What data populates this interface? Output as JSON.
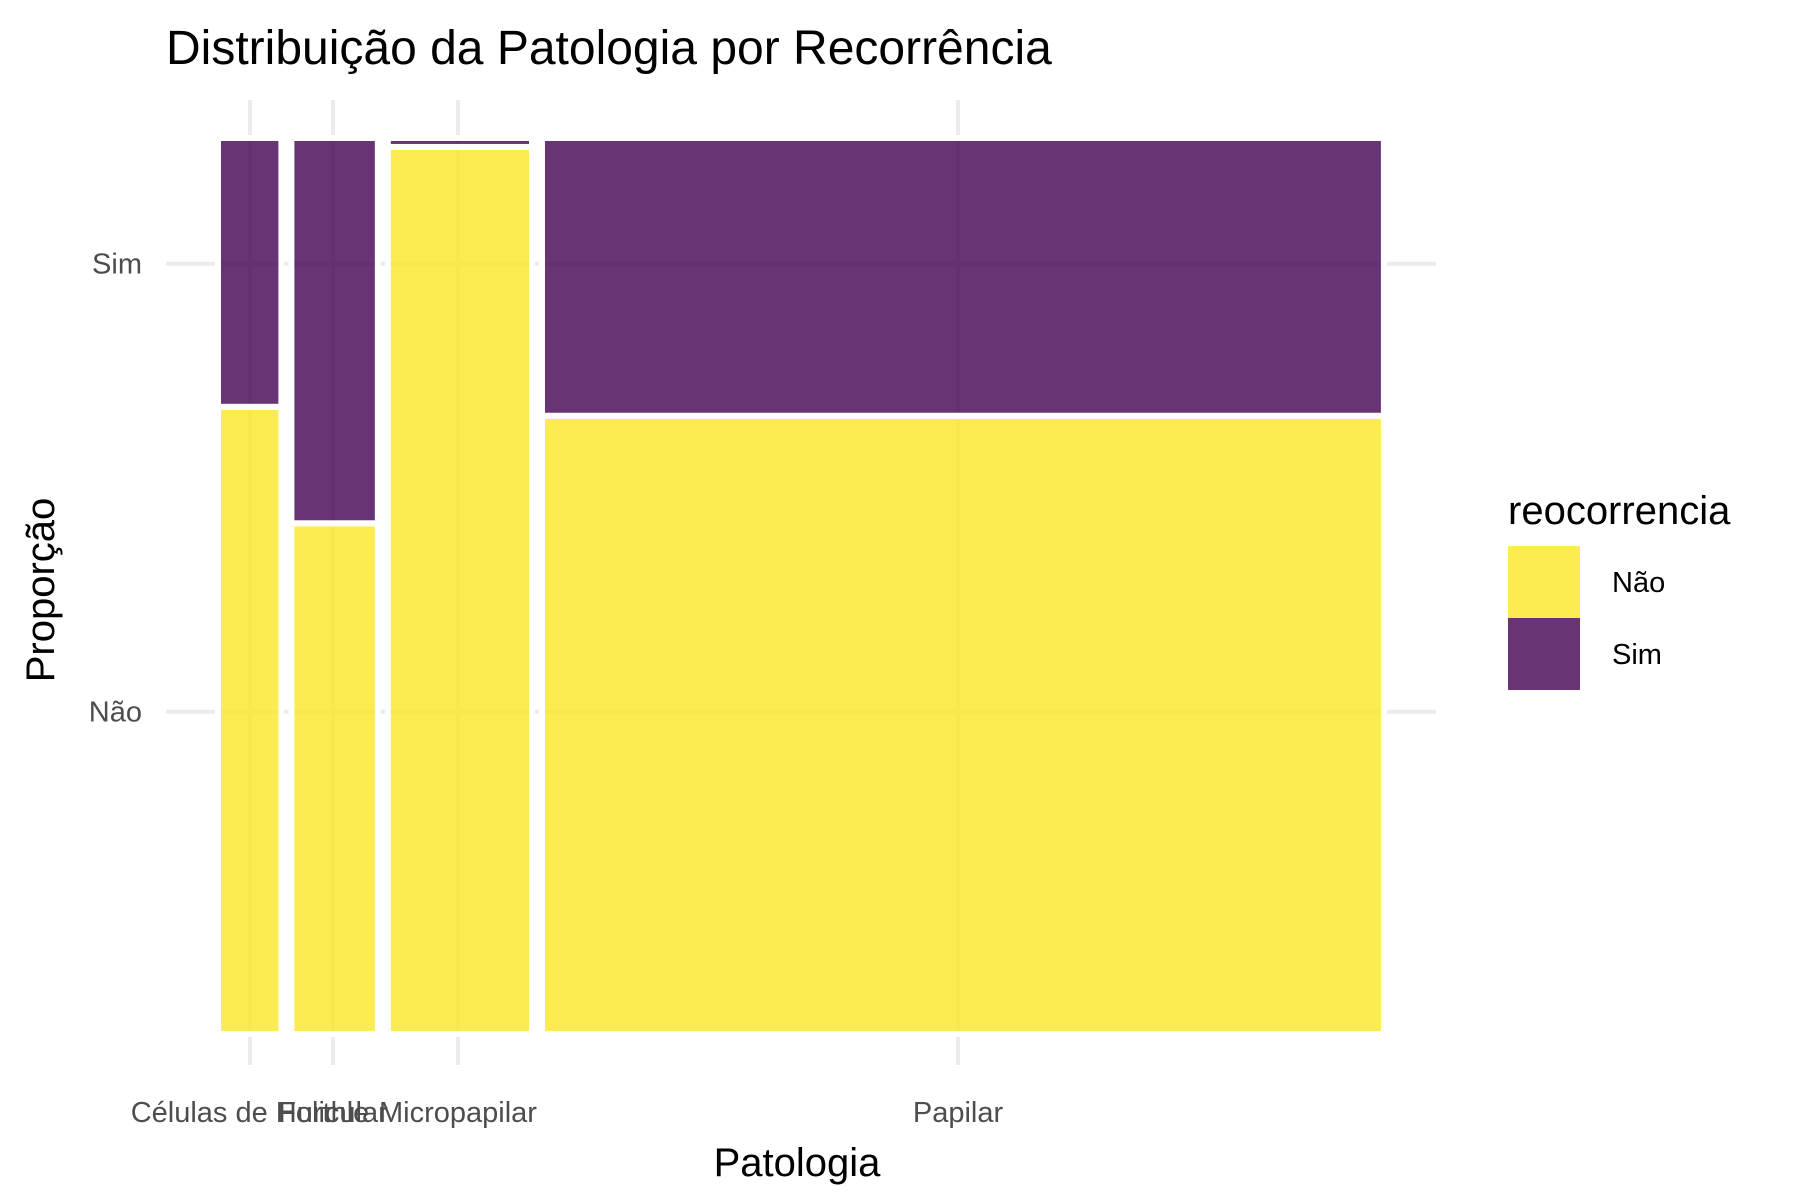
{
  "chart_data": {
    "type": "mosaic",
    "title": "Distribuição da Patologia por Recorrência",
    "xlabel": "Patologia",
    "ylabel": "Proporção",
    "categories": [
      "Células de Hurthle",
      "Folicular",
      "Micropapilar",
      "Papilar"
    ],
    "category_share": [
      0.0558,
      0.0761,
      0.1269,
      0.7411
    ],
    "y_ticks": [
      "Não",
      "Sim"
    ],
    "series": [
      {
        "name": "Não",
        "color": "#FDE725",
        "values": [
          0.7,
          0.57,
          0.99,
          0.69
        ]
      },
      {
        "name": "Sim",
        "color": "#440154",
        "values": [
          0.3,
          0.43,
          0.01,
          0.31
        ]
      }
    ],
    "legend": {
      "title": "reocorrencia",
      "position": "right"
    },
    "grid": true
  }
}
